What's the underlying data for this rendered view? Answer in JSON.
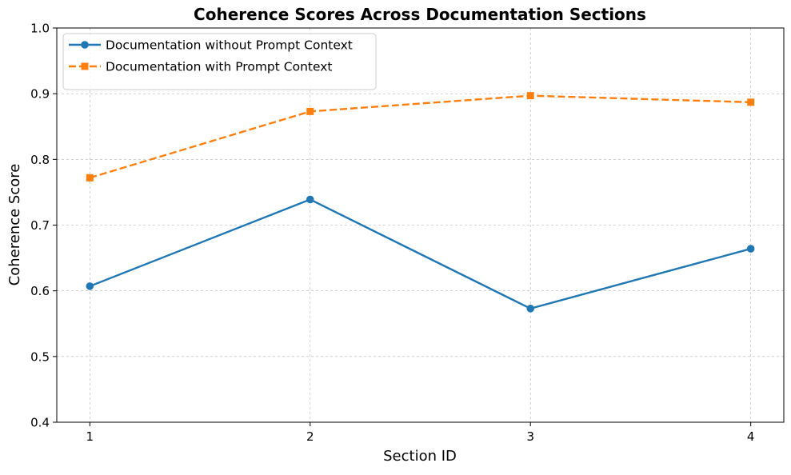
{
  "chart_data": {
    "type": "line",
    "title": "Coherence Scores Across Documentation Sections",
    "xlabel": "Section ID",
    "ylabel": "Coherence Score",
    "x": [
      1,
      2,
      3,
      4
    ],
    "x_tick_labels": [
      "1",
      "2",
      "3",
      "4"
    ],
    "xlim": [
      0.85,
      4.15
    ],
    "ylim": [
      0.4,
      1.0
    ],
    "y_ticks": [
      0.4,
      0.5,
      0.6,
      0.7,
      0.8,
      0.9,
      1.0
    ],
    "y_tick_labels": [
      "0.4",
      "0.5",
      "0.6",
      "0.7",
      "0.8",
      "0.9",
      "1.0"
    ],
    "grid": true,
    "legend_position": "top-left",
    "series": [
      {
        "name": "Documentation without Prompt Context",
        "values": [
          0.607,
          0.739,
          0.573,
          0.664
        ],
        "color": "#1f77b4",
        "marker": "circle",
        "line_style": "solid"
      },
      {
        "name": "Documentation with Prompt Context",
        "values": [
          0.772,
          0.873,
          0.897,
          0.887
        ],
        "color": "#ff7f0e",
        "marker": "square",
        "line_style": "dashed"
      }
    ]
  }
}
